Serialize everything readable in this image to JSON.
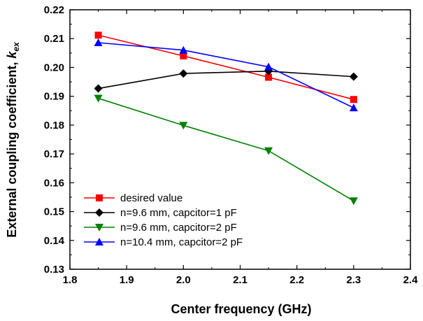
{
  "chart_data": {
    "type": "line",
    "xlabel": "Center frequency (GHz)",
    "ylabel_main": "External coupling coefficient, ",
    "ylabel_k": "k",
    "ylabel_sub": "ex",
    "xlim": [
      1.8,
      2.4
    ],
    "ylim": [
      0.13,
      0.22
    ],
    "xticks": [
      "1.8",
      "1.9",
      "2.0",
      "2.1",
      "2.2",
      "2.3",
      "2.4"
    ],
    "yticks": [
      "0.13",
      "0.14",
      "0.15",
      "0.16",
      "0.17",
      "0.18",
      "0.19",
      "0.20",
      "0.21",
      "0.22"
    ],
    "grid": false,
    "legend_position": "bottom-left",
    "x": [
      1.85,
      2.0,
      2.15,
      2.3
    ],
    "series": [
      {
        "name": "desired value",
        "color": "#ff0000",
        "marker": "square",
        "values": [
          0.2112,
          0.204,
          0.1966,
          0.1889
        ]
      },
      {
        "name": "n=9.6 mm, capcitor=1 pF",
        "color": "#000000",
        "marker": "diamond",
        "values": [
          0.1927,
          0.1979,
          0.1987,
          0.1968
        ]
      },
      {
        "name": "n=9.6 mm, capcitor=2 pF",
        "color": "#008000",
        "marker": "triangle-down",
        "values": [
          0.1893,
          0.1799,
          0.1711,
          0.1537
        ]
      },
      {
        "name": "n=10.4 mm, capcitor=2 pF",
        "color": "#0000ff",
        "marker": "triangle-up",
        "values": [
          0.2086,
          0.206,
          0.2002,
          0.186
        ]
      }
    ]
  }
}
